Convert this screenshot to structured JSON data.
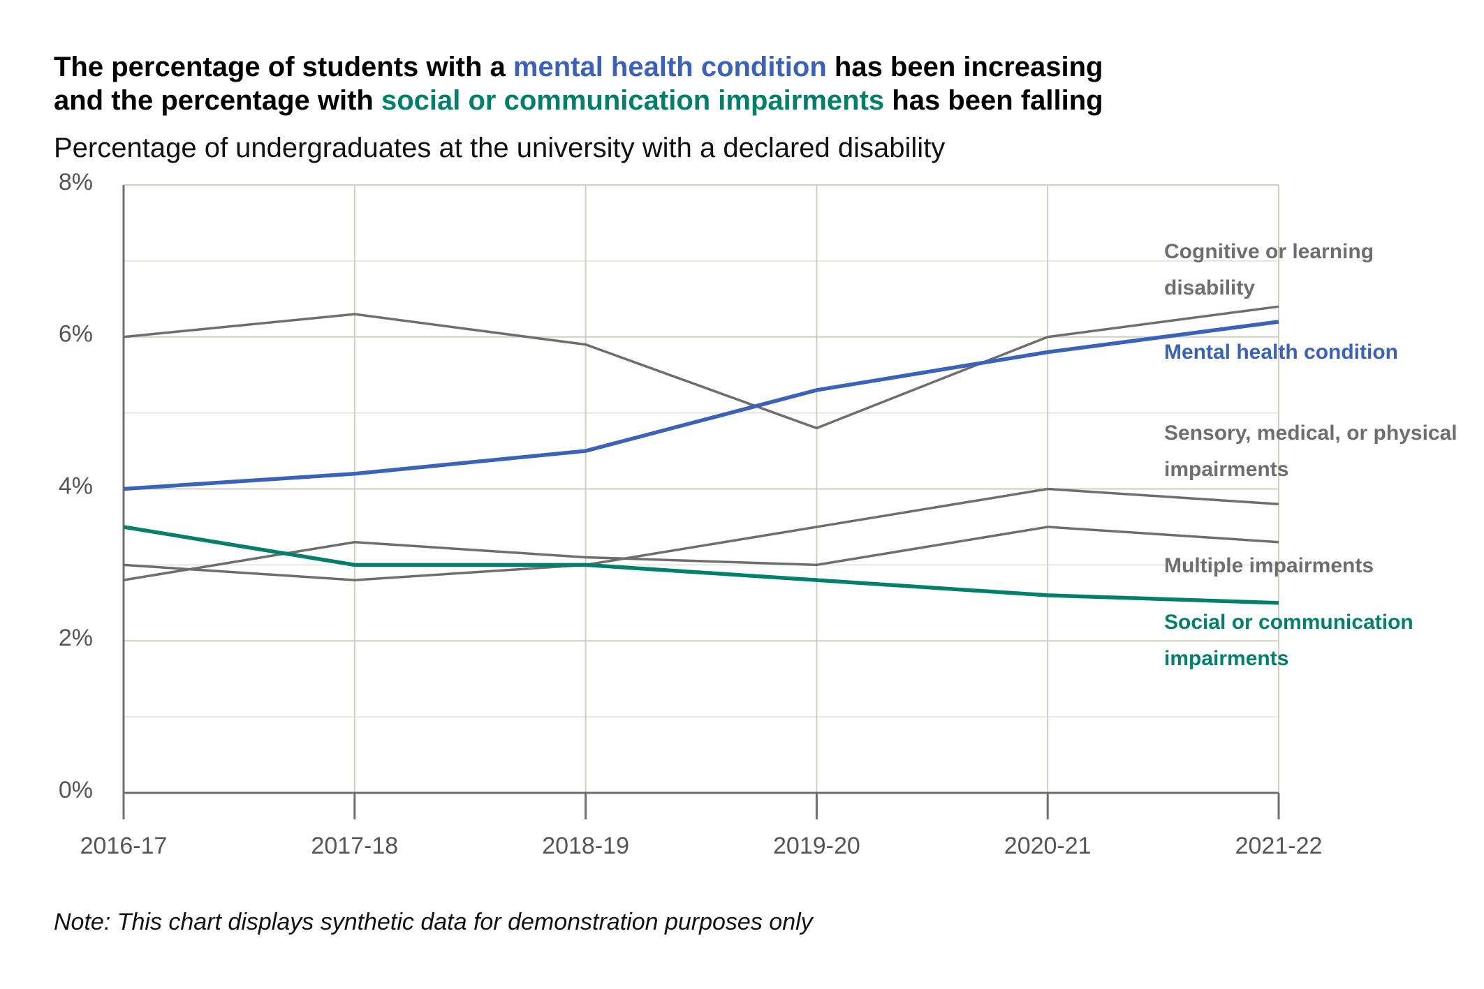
{
  "chart_data": {
    "type": "line",
    "title_segments": [
      {
        "text": "The percentage of students with a ",
        "color": "#000000"
      },
      {
        "text": "mental health condition",
        "color": "#3a62b9"
      },
      {
        "text": " has been increasing",
        "color": "#000000"
      },
      {
        "text": "and the percentage with ",
        "color": "#000000"
      },
      {
        "text": "social or communication impairments",
        "color": "#00806a"
      },
      {
        "text": " has been falling",
        "color": "#000000"
      }
    ],
    "subtitle": "Percentage of undergraduates at the university with a declared disability",
    "note": "Note: This chart displays synthetic data for demonstration purposes only",
    "categories": [
      "2016-17",
      "2017-18",
      "2018-19",
      "2019-20",
      "2020-21",
      "2021-22"
    ],
    "series": [
      {
        "name": "Cognitive or learning disability",
        "color": "#6e6e6e",
        "values": [
          6.0,
          6.3,
          5.9,
          4.8,
          6.0,
          6.4
        ]
      },
      {
        "name": "Mental health condition",
        "color": "#3a62b9",
        "values": [
          4.0,
          4.2,
          4.5,
          5.3,
          5.8,
          6.2
        ]
      },
      {
        "name": "Sensory, medical, or physical impairments",
        "color": "#6e6e6e",
        "values": [
          3.0,
          2.8,
          3.0,
          3.5,
          4.0,
          3.8
        ]
      },
      {
        "name": "Multiple impairments",
        "color": "#6e6e6e",
        "values": [
          2.8,
          3.3,
          3.1,
          3.0,
          3.5,
          3.3
        ]
      },
      {
        "name": "Social or communication impairments",
        "color": "#00806a",
        "values": [
          3.5,
          3.0,
          3.0,
          2.8,
          2.6,
          2.5
        ]
      }
    ],
    "ylim": [
      0,
      8
    ],
    "yticks": [
      {
        "value": 0,
        "label": "0%"
      },
      {
        "value": 2,
        "label": "2%"
      },
      {
        "value": 4,
        "label": "4%"
      },
      {
        "value": 6,
        "label": "6%"
      },
      {
        "value": 8,
        "label": "8%"
      }
    ],
    "minor_yticks": [
      1,
      3,
      5,
      7
    ],
    "grid": true
  }
}
